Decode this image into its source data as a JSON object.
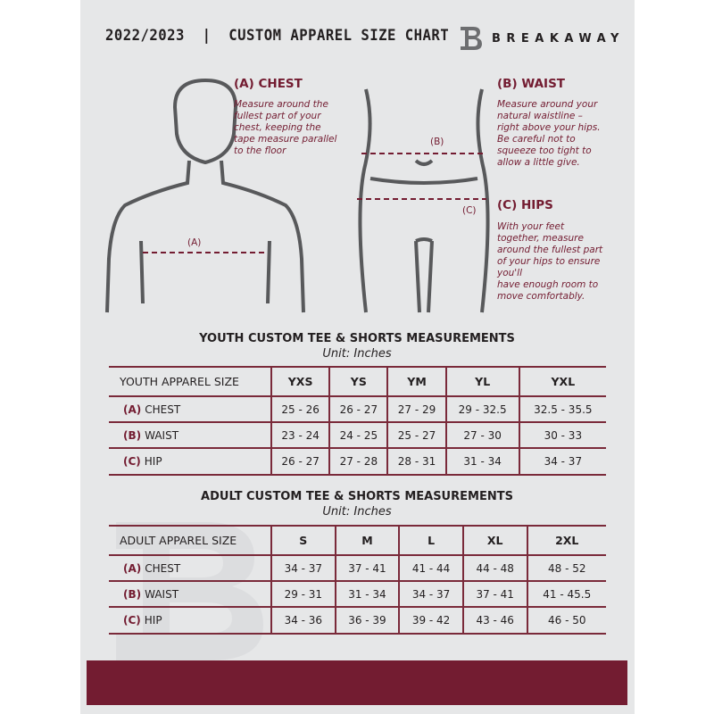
{
  "header": {
    "title": "2022/2023  |  CUSTOM APPAREL SIZE CHART",
    "brand": "BREAKAWAY",
    "logo_letter": "B"
  },
  "chest": {
    "heading": "(A) CHEST",
    "desc": [
      "Measure around the",
      "fullest part of your",
      "chest, keeping the",
      "tape measure parallel",
      "to the floor"
    ],
    "marker": "(A)"
  },
  "waist": {
    "heading": "(B) WAIST",
    "desc": [
      "Measure around your",
      "natural waistline –",
      "right above your hips.",
      "Be careful not to",
      "squeeze too tight to",
      "allow a little give."
    ],
    "marker": "(B)"
  },
  "hips": {
    "heading": "(C) HIPS",
    "desc": [
      "With your feet",
      "together, measure",
      "around the fullest part",
      "of your hips to ensure",
      "you'll",
      "have enough room to",
      "move comfortably."
    ],
    "marker": "(C)"
  },
  "youth": {
    "title": "YOUTH CUSTOM TEE & SHORTS MEASUREMENTS",
    "unit": "Unit: Inches",
    "header": [
      "YOUTH APPAREL SIZE",
      "YXS",
      "YS",
      "YM",
      "YL",
      "YXL"
    ],
    "rows": [
      {
        "tag": "(A)",
        "label": "CHEST",
        "values": [
          "25 - 26",
          "26 - 27",
          "27 - 29",
          "29 - 32.5",
          "32.5 - 35.5"
        ]
      },
      {
        "tag": "(B)",
        "label": "WAIST",
        "values": [
          "23 - 24",
          "24 - 25",
          "25 - 27",
          "27 - 30",
          "30 - 33"
        ]
      },
      {
        "tag": "(C)",
        "label": "HIP",
        "values": [
          "26 - 27",
          "27 - 28",
          "28 - 31",
          "31 - 34",
          "34 - 37"
        ]
      }
    ]
  },
  "adult": {
    "title": "ADULT CUSTOM TEE & SHORTS MEASUREMENTS",
    "unit": "Unit: Inches",
    "header": [
      "ADULT APPAREL SIZE",
      "S",
      "M",
      "L",
      "XL",
      "2XL"
    ],
    "rows": [
      {
        "tag": "(A)",
        "label": "CHEST",
        "values": [
          "34 - 37",
          "37 - 41",
          "41 - 44",
          "44 - 48",
          "48 - 52"
        ]
      },
      {
        "tag": "(B)",
        "label": "WAIST",
        "values": [
          "29 - 31",
          "31 - 34",
          "34 - 37",
          "37 - 41",
          "41 - 45.5"
        ]
      },
      {
        "tag": "(C)",
        "label": "HIP",
        "values": [
          "34 - 36",
          "36 - 39",
          "39 - 42",
          "43 - 46",
          "46 - 50"
        ]
      }
    ]
  },
  "colors": {
    "accent": "#731c31",
    "background": "#e6e7e8"
  }
}
